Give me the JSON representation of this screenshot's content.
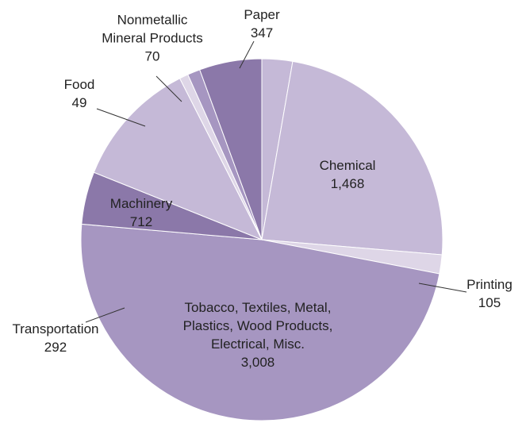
{
  "chart_data": {
    "type": "pie",
    "categories": [
      null,
      "Chemical",
      "Printing",
      "Tobacco, Textiles, Metal,\nPlastics, Wood Products,\nElectrical, Misc.",
      "Transportation",
      "Machinery",
      "Food",
      "Nonmetallic\nMineral Products",
      "Paper"
    ],
    "values": [
      170,
      1468,
      105,
      3008,
      292,
      712,
      49,
      70,
      347
    ],
    "value_labels": [
      null,
      "1,468",
      "105",
      "3,008",
      "292",
      "712",
      "49",
      "70",
      "347"
    ],
    "colors": [
      "#c5b9d7",
      "#c5b9d7",
      "#ded6e7",
      "#a696c1",
      "#8b78a9",
      "#c5b9d7",
      "#ded6e7",
      "#a696c1",
      "#8b78a9"
    ]
  }
}
